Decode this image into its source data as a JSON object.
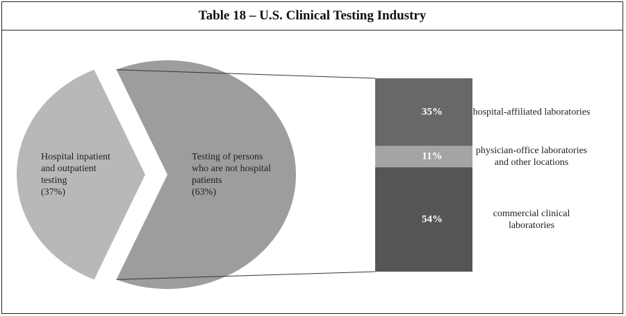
{
  "chart_data": {
    "type": "pie",
    "title": "Table 18 – U.S. Clinical Testing Industry",
    "categories": [
      "Hospital inpatient and outpatient testing",
      "Testing of persons who are not hospital patients"
    ],
    "values": [
      37,
      63
    ],
    "value_labels": [
      "(37%)",
      "(63%)"
    ],
    "colors": [
      "#b8b8b8",
      "#9d9d9d"
    ],
    "breakdown": {
      "categories": [
        "hospital-affiliated laboratories",
        "physician-office laboratories and other locations",
        "commercial clinical laboratories"
      ],
      "values": [
        35,
        11,
        54
      ],
      "value_labels": [
        "35%",
        "11%",
        "54%"
      ],
      "colors": [
        "#686868",
        "#a4a4a4",
        "#555555"
      ]
    }
  }
}
